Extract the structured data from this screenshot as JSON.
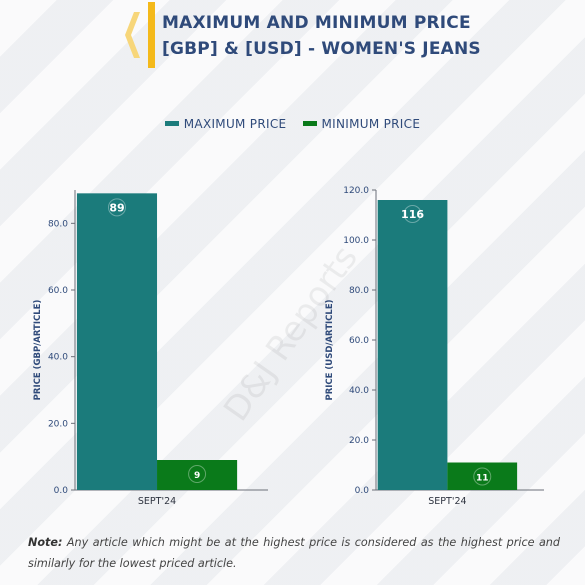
{
  "header": {
    "title_line1": "MAXIMUM AND MINIMUM PRICE",
    "title_line2": "[GBP] & [USD] - WOMEN'S JEANS"
  },
  "legend": {
    "max_label": "MAXIMUM PRICE",
    "min_label": "MINIMUM PRICE"
  },
  "colors": {
    "max": "#1b7b7b",
    "min": "#0a7a1a",
    "title": "#2f4a7a",
    "accent": "#f4b91a"
  },
  "watermark": "D&J Reports",
  "chart_data": [
    {
      "type": "bar",
      "categories": [
        "SEPT'24"
      ],
      "series": [
        {
          "name": "MAXIMUM PRICE",
          "values": [
            89
          ]
        },
        {
          "name": "MINIMUM PRICE",
          "values": [
            9
          ]
        }
      ],
      "ylabel": "PRICE (GBP/ARTICLE)",
      "ylim": [
        0,
        90
      ],
      "yticks": [
        "0.0",
        "20.0",
        "40.0",
        "60.0",
        "80.0"
      ],
      "data_labels": [
        "89",
        "9"
      ]
    },
    {
      "type": "bar",
      "categories": [
        "SEPT'24"
      ],
      "series": [
        {
          "name": "MAXIMUM PRICE",
          "values": [
            116
          ]
        },
        {
          "name": "MINIMUM PRICE",
          "values": [
            11
          ]
        }
      ],
      "ylabel": "PRICE (USD/ARTICLE)",
      "ylim": [
        0,
        120
      ],
      "yticks": [
        "0.0",
        "20.0",
        "40.0",
        "60.0",
        "80.0",
        "100.0",
        "120.0"
      ],
      "data_labels": [
        "116",
        "11"
      ]
    }
  ],
  "note": {
    "label": "Note:",
    "text": " Any article which might be at the highest price is considered as the highest price and similarly for the lowest priced article."
  }
}
